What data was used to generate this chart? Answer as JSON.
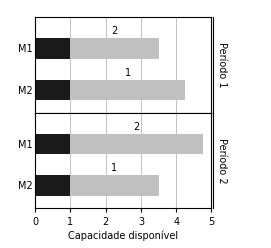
{
  "bars_p1": [
    {
      "label": "M1",
      "black_val": 1.0,
      "gray_val": 2.5,
      "gray_label": "2"
    },
    {
      "label": "M2",
      "black_val": 1.0,
      "gray_val": 3.25,
      "gray_label": "1"
    }
  ],
  "bars_p2": [
    {
      "label": "M1",
      "black_val": 1.0,
      "gray_val": 3.75,
      "gray_label": "2"
    },
    {
      "label": "M2",
      "black_val": 1.0,
      "gray_val": 2.5,
      "gray_label": "1"
    }
  ],
  "black_color": "#1a1a1a",
  "gray_color": "#c0c0c0",
  "xlabel": "Capacidade disponível",
  "xlim": [
    0,
    5
  ],
  "xticks": [
    0,
    1,
    2,
    3,
    4,
    5
  ],
  "period1_label": "Período 1",
  "period2_label": "Período 2",
  "bar_height": 0.5,
  "label_fontsize": 7,
  "tick_fontsize": 7,
  "xlabel_fontsize": 7,
  "period_fontsize": 7
}
